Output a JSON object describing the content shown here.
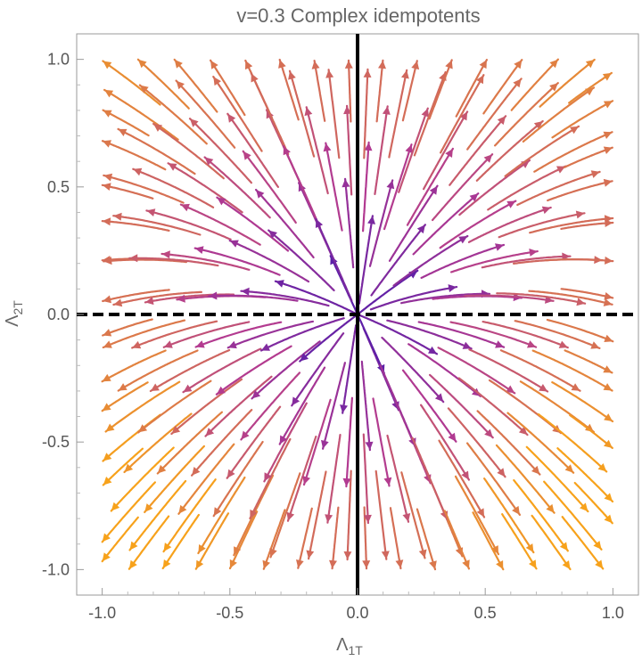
{
  "chart_data": {
    "type": "streamplot",
    "title": "v=0.3 Complex idempotents",
    "xlabel": "Λ",
    "xlabel_sub": "1T",
    "ylabel": "Λ",
    "ylabel_sub": "2T",
    "xlim": [
      -1.1,
      1.1
    ],
    "ylim": [
      -1.1,
      1.1
    ],
    "x_ticks": [
      "-1.0",
      "-0.5",
      "0.0",
      "0.5",
      "1.0"
    ],
    "y_ticks": [
      "-1.0",
      "-0.5",
      "0.0",
      "0.5",
      "1.0"
    ],
    "x_tick_values": [
      -1.0,
      -0.5,
      0.0,
      0.5,
      1.0
    ],
    "y_tick_values": [
      -1.0,
      -0.5,
      0.0,
      0.5,
      1.0
    ],
    "fixed_point": [
      0.0,
      0.0
    ],
    "invariant_lines": [
      {
        "type": "vertical",
        "at": 0.0,
        "style": "solid"
      },
      {
        "type": "horizontal",
        "at": 0.0,
        "style": "dashed"
      }
    ],
    "vector_field": {
      "dx": "x",
      "dy": "y - 0.3*x*x",
      "note_v": 0.3
    },
    "color_scale": {
      "low": "#2a0fb5",
      "mid": "#b23a91",
      "high": "#f7a21b"
    },
    "grid": false
  }
}
